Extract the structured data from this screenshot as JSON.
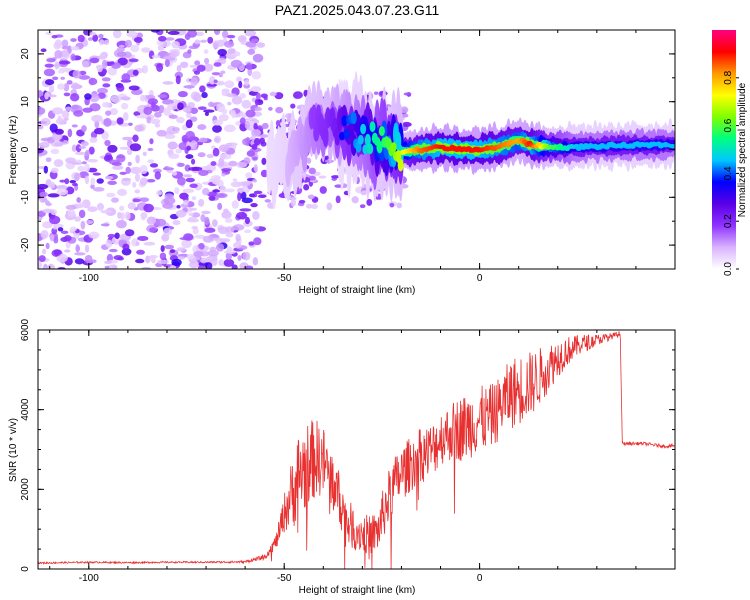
{
  "title": "PAZ1.2025.043.07.23.G11",
  "chart_data": [
    {
      "type": "heatmap",
      "xlabel": "Height of straight line (km)",
      "ylabel": "Frequency (Hz)",
      "xlim": [
        -113,
        50
      ],
      "ylim": [
        -25,
        25
      ],
      "xticks": [
        -100,
        -50,
        0
      ],
      "yticks": [
        -20,
        -10,
        0,
        10,
        20
      ],
      "colorbar": {
        "label": "Normalized spectral amplitude",
        "range": [
          0,
          1
        ],
        "ticks": [
          "0.0",
          "0.2",
          "0.4",
          "0.6",
          "0.8"
        ],
        "colors": [
          "#ffffff",
          "#d9b3ff",
          "#8f33ff",
          "#5a00e6",
          "#0000ff",
          "#00c8ff",
          "#00ff80",
          "#80ff00",
          "#ffff00",
          "#ff9900",
          "#ff0000",
          "#ff0080"
        ]
      },
      "ridge": {
        "x": [
          -58,
          -52,
          -47,
          -43,
          -38,
          -33,
          -28,
          -23,
          -20,
          -15,
          -10,
          -5,
          0,
          5,
          10,
          13,
          18,
          25,
          35,
          50
        ],
        "frequency": [
          -2,
          -3,
          -1,
          5,
          4,
          4,
          2,
          1,
          -0.5,
          0,
          0.5,
          0,
          0,
          0.5,
          2,
          1,
          0.5,
          0.5,
          0.8,
          1
        ],
        "peak_amplitude": [
          0.1,
          0.15,
          0.2,
          0.25,
          0.3,
          0.4,
          0.5,
          0.6,
          0.7,
          0.85,
          0.9,
          0.9,
          0.9,
          0.85,
          0.8,
          0.9,
          0.6,
          0.45,
          0.45,
          0.45
        ]
      }
    },
    {
      "type": "line",
      "xlabel": "Height of straight line (km)",
      "ylabel": "SNR (10 * v/v)",
      "xlim": [
        -113,
        50
      ],
      "ylim": [
        0,
        6000
      ],
      "xticks": [
        -100,
        -50,
        0
      ],
      "yticks": [
        0,
        2000,
        4000,
        6000
      ],
      "color": "#e83030",
      "series": [
        {
          "x": [
            -113,
            -100,
            -90,
            -80,
            -70,
            -60,
            -55,
            -52,
            -50,
            -48,
            -46,
            -44,
            -42,
            -40,
            -38,
            -36,
            -34,
            -32,
            -30,
            -28,
            -26,
            -24,
            -22,
            -20,
            -18,
            -16,
            -14,
            -12,
            -10,
            -8,
            -6,
            -4,
            -2,
            0,
            2,
            4,
            6,
            8,
            10,
            12,
            14,
            16,
            18,
            20,
            22,
            24,
            26,
            28,
            30,
            32,
            34,
            36,
            36.5,
            38,
            40,
            42,
            44,
            46,
            48,
            50
          ],
          "y": [
            150,
            170,
            160,
            170,
            170,
            180,
            300,
            700,
            1400,
            1900,
            2400,
            2600,
            2800,
            2700,
            2300,
            1800,
            1200,
            1000,
            900,
            850,
            950,
            1600,
            2100,
            2400,
            2600,
            2800,
            2900,
            3000,
            3300,
            3400,
            3500,
            3550,
            3650,
            3750,
            3800,
            3900,
            4200,
            4400,
            4500,
            4600,
            4700,
            4900,
            5100,
            5300,
            5450,
            5550,
            5650,
            5700,
            5750,
            5800,
            5850,
            5900,
            3150,
            3150,
            3150,
            3150,
            3120,
            3100,
            3080,
            3100
          ],
          "noise": [
            20,
            20,
            20,
            20,
            20,
            30,
            60,
            200,
            500,
            900,
            1200,
            1100,
            1000,
            900,
            800,
            700,
            600,
            550,
            500,
            500,
            550,
            700,
            700,
            700,
            700,
            700,
            700,
            700,
            700,
            700,
            800,
            850,
            850,
            850,
            800,
            800,
            800,
            900,
            900,
            850,
            800,
            700,
            600,
            500,
            400,
            300,
            250,
            200,
            150,
            100,
            80,
            80,
            40,
            40,
            40,
            40,
            40,
            40,
            40,
            40
          ]
        }
      ]
    }
  ]
}
